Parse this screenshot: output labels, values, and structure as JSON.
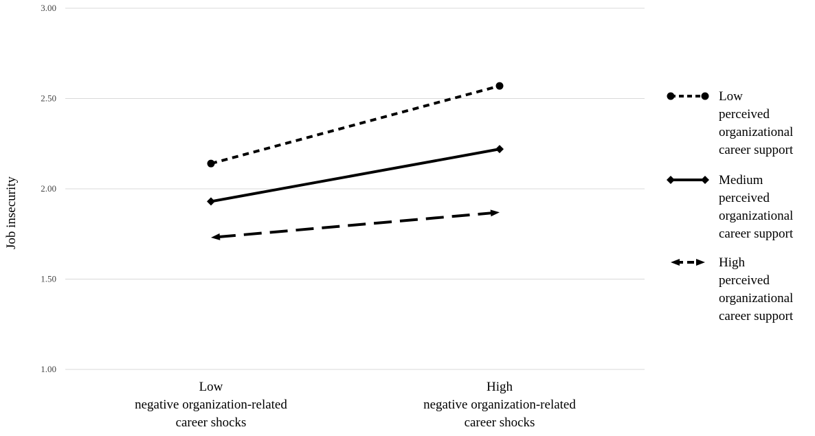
{
  "chart_data": {
    "type": "line",
    "xlabel": "",
    "ylabel": "Job insecurity",
    "ylim": [
      1.0,
      3.0
    ],
    "yticks": [
      "1.00",
      "1.50",
      "2.00",
      "2.50",
      "3.00"
    ],
    "categories": [
      [
        "Low",
        "negative organization-related",
        "career shocks"
      ],
      [
        "High",
        "negative organization-related",
        "career shocks"
      ]
    ],
    "grid": true,
    "legend_position": "right",
    "series": [
      {
        "name": "Low perceived organizational career support",
        "legend_lines": [
          "Low",
          "perceived",
          "organizational",
          "career support"
        ],
        "values": [
          2.14,
          2.57
        ],
        "line_style": "short-dash",
        "marker": "circle",
        "color": "#000000"
      },
      {
        "name": "Medium perceived organizational career support",
        "legend_lines": [
          "Medium",
          "perceived",
          "organizational",
          "career support"
        ],
        "values": [
          1.93,
          2.22
        ],
        "line_style": "solid",
        "marker": "diamond",
        "color": "#000000"
      },
      {
        "name": "High perceived organizational career support",
        "legend_lines": [
          "High",
          "perceived",
          "organizational",
          "career support"
        ],
        "values": [
          1.73,
          1.87
        ],
        "line_style": "long-dash",
        "marker": "arrow",
        "color": "#000000"
      }
    ]
  }
}
